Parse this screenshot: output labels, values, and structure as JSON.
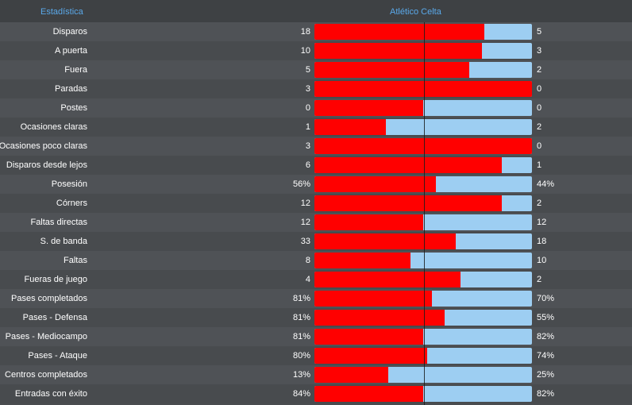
{
  "header": {
    "stat_label": "Estadística",
    "teams_label": "Atlético Celta"
  },
  "colors": {
    "home_bar": "#ff0000",
    "away_bar": "#9dcef2",
    "header_text": "#5aa9ea"
  },
  "stats": [
    {
      "label": "Disparos",
      "home": "18",
      "away": "5",
      "home_share": 0.78
    },
    {
      "label": "A puerta",
      "home": "10",
      "away": "3",
      "home_share": 0.77
    },
    {
      "label": "Fuera",
      "home": "5",
      "away": "2",
      "home_share": 0.71
    },
    {
      "label": "Paradas",
      "home": "3",
      "away": "0",
      "home_share": 1.0
    },
    {
      "label": "Postes",
      "home": "0",
      "away": "0",
      "home_share": 0.5
    },
    {
      "label": "Ocasiones claras",
      "home": "1",
      "away": "2",
      "home_share": 0.33
    },
    {
      "label": "Ocasiones poco claras",
      "home": "3",
      "away": "0",
      "home_share": 1.0
    },
    {
      "label": "Disparos desde lejos",
      "home": "6",
      "away": "1",
      "home_share": 0.86
    },
    {
      "label": "Posesión",
      "home": "56%",
      "away": "44%",
      "home_share": 0.56
    },
    {
      "label": "Córners",
      "home": "12",
      "away": "2",
      "home_share": 0.86
    },
    {
      "label": "Faltas directas",
      "home": "12",
      "away": "12",
      "home_share": 0.5
    },
    {
      "label": "S. de banda",
      "home": "33",
      "away": "18",
      "home_share": 0.65
    },
    {
      "label": "Faltas",
      "home": "8",
      "away": "10",
      "home_share": 0.44
    },
    {
      "label": "Fueras de juego",
      "home": "4",
      "away": "2",
      "home_share": 0.67
    },
    {
      "label": "Pases completados",
      "home": "81%",
      "away": "70%",
      "home_share": 0.54
    },
    {
      "label": "Pases - Defensa",
      "home": "81%",
      "away": "55%",
      "home_share": 0.6
    },
    {
      "label": "Pases - Mediocampo",
      "home": "81%",
      "away": "82%",
      "home_share": 0.5
    },
    {
      "label": "Pases - Ataque",
      "home": "80%",
      "away": "74%",
      "home_share": 0.52
    },
    {
      "label": "Centros completados",
      "home": "13%",
      "away": "25%",
      "home_share": 0.34
    },
    {
      "label": "Entradas con éxito",
      "home": "84%",
      "away": "82%",
      "home_share": 0.5
    }
  ]
}
